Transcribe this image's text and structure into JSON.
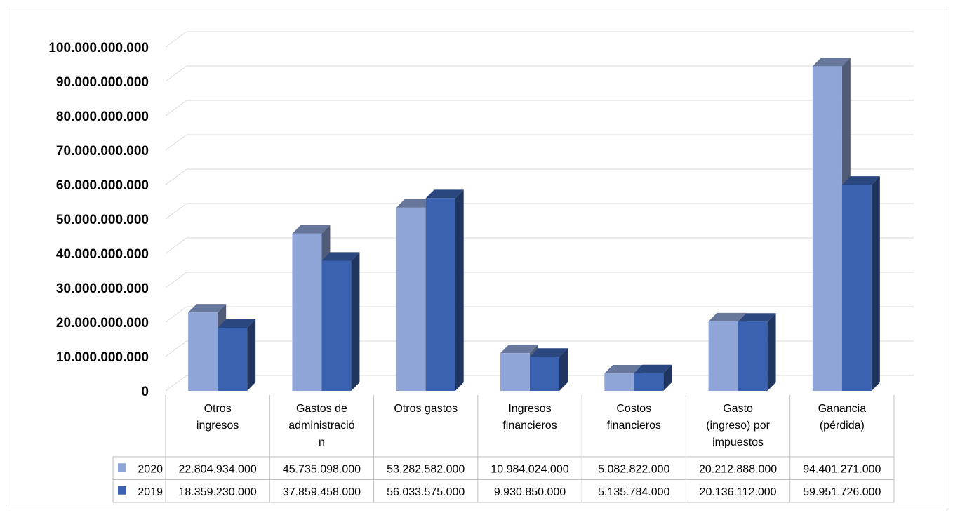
{
  "chart_data": {
    "type": "bar",
    "categories": [
      [
        "Otros",
        "ingresos"
      ],
      [
        "Gastos de",
        "administració",
        "n"
      ],
      [
        "Otros gastos"
      ],
      [
        "Ingresos",
        "financieros"
      ],
      [
        "Costos",
        "financieros"
      ],
      [
        "Gasto",
        "(ingreso) por",
        "impuestos"
      ],
      [
        "Ganancia",
        "(pérdida)"
      ]
    ],
    "series": [
      {
        "name": "2020",
        "color": "#8FA5D8",
        "values": [
          22804934000,
          45735098000,
          53282582000,
          10984024000,
          5082822000,
          20212888000,
          94401271000
        ],
        "labels": [
          "22.804.934.000",
          "45.735.098.000",
          "53.282.582.000",
          "10.984.024.000",
          "5.082.822.000",
          "20.212.888.000",
          "94.401.271.000"
        ]
      },
      {
        "name": "2019",
        "color": "#3A62B0",
        "values": [
          18359230000,
          37859458000,
          56033575000,
          9930850000,
          5135784000,
          20136112000,
          59951726000
        ],
        "labels": [
          "18.359.230.000",
          "37.859.458.000",
          "56.033.575.000",
          "9.930.850.000",
          "5.135.784.000",
          "20.136.112.000",
          "59.951.726.000"
        ]
      }
    ],
    "ylim": [
      0,
      100000000000
    ],
    "yticks": [
      "0",
      "10.000.000.000",
      "20.000.000.000",
      "30.000.000.000",
      "40.000.000.000",
      "50.000.000.000",
      "60.000.000.000",
      "70.000.000.000",
      "80.000.000.000",
      "90.000.000.000",
      "100.000.000.000"
    ],
    "grid": true,
    "legend": "data-table",
    "style": "3d-clustered-column"
  }
}
